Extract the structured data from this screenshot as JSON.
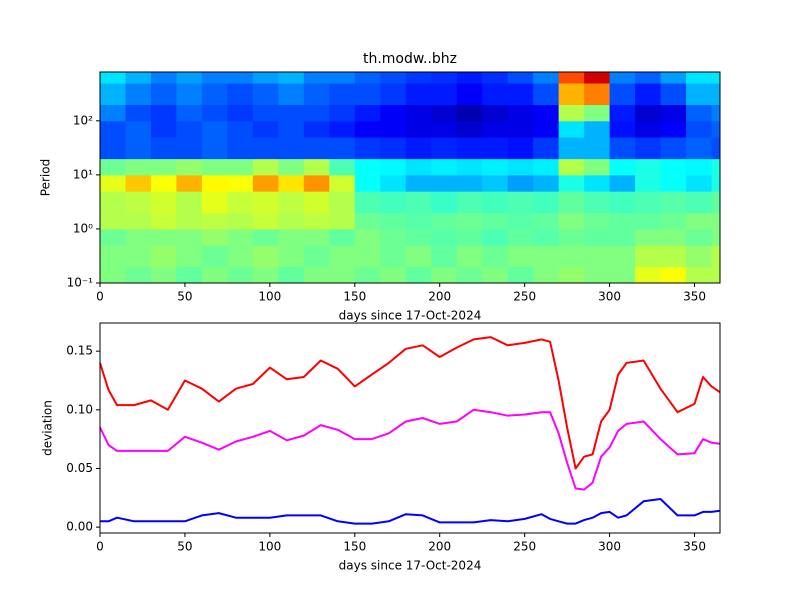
{
  "chart_data": [
    {
      "type": "heatmap",
      "title": "th.modw..bhz",
      "xlabel": "days since 17-Oct-2024",
      "ylabel": "Period",
      "xlim": [
        0,
        365
      ],
      "ylim": [
        0.1,
        800
      ],
      "log_y": true,
      "xticks": [
        0,
        50,
        100,
        150,
        200,
        250,
        300,
        350
      ],
      "yticks": [
        {
          "value": 0.1,
          "label": "10⁻¹"
        },
        {
          "value": 1,
          "label": "10⁰"
        },
        {
          "value": 10,
          "label": "10¹"
        },
        {
          "value": 100,
          "label": "10²"
        }
      ],
      "x_edges": [
        0,
        15,
        30,
        45,
        60,
        75,
        90,
        105,
        120,
        135,
        150,
        165,
        180,
        195,
        210,
        225,
        240,
        255,
        270,
        285,
        300,
        315,
        330,
        345,
        360,
        365
      ],
      "y_edges": [
        0.1,
        0.2,
        0.5,
        1,
        2,
        5,
        10,
        20,
        50,
        100,
        200,
        500,
        800
      ],
      "z": [
        [
          0.5,
          0.48,
          0.5,
          0.47,
          0.5,
          0.48,
          0.5,
          0.47,
          0.5,
          0.5,
          0.48,
          0.5,
          0.47,
          0.5,
          0.48,
          0.5,
          0.47,
          0.5,
          0.52,
          0.5,
          0.5,
          0.6,
          0.62,
          0.55,
          0.55
        ],
        [
          0.5,
          0.5,
          0.52,
          0.5,
          0.48,
          0.5,
          0.52,
          0.5,
          0.48,
          0.5,
          0.5,
          0.48,
          0.5,
          0.47,
          0.5,
          0.48,
          0.5,
          0.5,
          0.5,
          0.5,
          0.5,
          0.55,
          0.55,
          0.52,
          0.55
        ],
        [
          0.48,
          0.5,
          0.5,
          0.5,
          0.52,
          0.5,
          0.48,
          0.5,
          0.5,
          0.47,
          0.5,
          0.48,
          0.47,
          0.46,
          0.47,
          0.45,
          0.47,
          0.46,
          0.48,
          0.47,
          0.47,
          0.5,
          0.5,
          0.48,
          0.5
        ],
        [
          0.55,
          0.55,
          0.57,
          0.55,
          0.56,
          0.55,
          0.57,
          0.55,
          0.56,
          0.55,
          0.48,
          0.47,
          0.46,
          0.47,
          0.48,
          0.47,
          0.46,
          0.47,
          0.5,
          0.48,
          0.47,
          0.47,
          0.48,
          0.5,
          0.5
        ],
        [
          0.55,
          0.56,
          0.58,
          0.55,
          0.6,
          0.57,
          0.58,
          0.56,
          0.58,
          0.55,
          0.45,
          0.44,
          0.45,
          0.43,
          0.45,
          0.44,
          0.45,
          0.44,
          0.47,
          0.45,
          0.44,
          0.45,
          0.46,
          0.45,
          0.47
        ],
        [
          0.6,
          0.68,
          0.62,
          0.7,
          0.63,
          0.62,
          0.72,
          0.65,
          0.73,
          0.58,
          0.38,
          0.35,
          0.3,
          0.3,
          0.3,
          0.32,
          0.28,
          0.3,
          0.4,
          0.35,
          0.3,
          0.4,
          0.38,
          0.35,
          0.4
        ],
        [
          0.48,
          0.5,
          0.5,
          0.52,
          0.5,
          0.5,
          0.55,
          0.5,
          0.55,
          0.45,
          0.38,
          0.37,
          0.35,
          0.36,
          0.35,
          0.36,
          0.35,
          0.36,
          0.55,
          0.5,
          0.38,
          0.4,
          0.38,
          0.37,
          0.4
        ],
        [
          0.2,
          0.22,
          0.2,
          0.2,
          0.22,
          0.2,
          0.2,
          0.2,
          0.2,
          0.2,
          0.18,
          0.17,
          0.15,
          0.16,
          0.15,
          0.15,
          0.14,
          0.18,
          0.3,
          0.3,
          0.2,
          0.18,
          0.2,
          0.22,
          0.2
        ],
        [
          0.2,
          0.22,
          0.18,
          0.2,
          0.22,
          0.2,
          0.18,
          0.2,
          0.17,
          0.15,
          0.12,
          0.12,
          0.1,
          0.1,
          0.08,
          0.1,
          0.1,
          0.12,
          0.35,
          0.3,
          0.14,
          0.1,
          0.12,
          0.2,
          0.22
        ],
        [
          0.25,
          0.2,
          0.18,
          0.22,
          0.2,
          0.18,
          0.2,
          0.2,
          0.2,
          0.18,
          0.15,
          0.12,
          0.1,
          0.08,
          0.05,
          0.08,
          0.1,
          0.12,
          0.55,
          0.5,
          0.15,
          0.08,
          0.1,
          0.22,
          0.25
        ],
        [
          0.3,
          0.25,
          0.22,
          0.25,
          0.22,
          0.2,
          0.22,
          0.25,
          0.22,
          0.2,
          0.2,
          0.18,
          0.15,
          0.15,
          0.12,
          0.15,
          0.15,
          0.2,
          0.7,
          0.75,
          0.2,
          0.15,
          0.2,
          0.3,
          0.3
        ],
        [
          0.35,
          0.3,
          0.25,
          0.28,
          0.25,
          0.25,
          0.28,
          0.3,
          0.25,
          0.25,
          0.22,
          0.2,
          0.18,
          0.17,
          0.15,
          0.17,
          0.2,
          0.25,
          0.8,
          0.92,
          0.25,
          0.22,
          0.28,
          0.35,
          0.35
        ]
      ]
    },
    {
      "type": "line",
      "xlabel": "days since 17-Oct-2024",
      "ylabel": "deviation",
      "xlim": [
        0,
        365
      ],
      "ylim": [
        -0.005,
        0.174
      ],
      "xticks": [
        0,
        50,
        100,
        150,
        200,
        250,
        300,
        350
      ],
      "yticks": [
        {
          "value": 0,
          "label": "0.00"
        },
        {
          "value": 0.05,
          "label": "0.05"
        },
        {
          "value": 0.1,
          "label": "0.10"
        },
        {
          "value": 0.15,
          "label": "0.15"
        }
      ],
      "x": [
        0,
        5,
        10,
        20,
        30,
        40,
        50,
        60,
        70,
        80,
        90,
        100,
        110,
        120,
        130,
        140,
        150,
        160,
        170,
        180,
        190,
        200,
        210,
        220,
        230,
        240,
        250,
        260,
        265,
        270,
        275,
        280,
        285,
        290,
        295,
        300,
        305,
        310,
        320,
        330,
        340,
        350,
        355,
        360,
        365
      ],
      "series": [
        {
          "color": "#ff0000",
          "values": [
            0.14,
            0.117,
            0.104,
            0.104,
            0.108,
            0.1,
            0.125,
            0.118,
            0.107,
            0.118,
            0.122,
            0.136,
            0.126,
            0.128,
            0.142,
            0.135,
            0.12,
            0.13,
            0.14,
            0.152,
            0.155,
            0.145,
            0.153,
            0.16,
            0.162,
            0.155,
            0.157,
            0.16,
            0.158,
            0.125,
            0.085,
            0.05,
            0.06,
            0.062,
            0.09,
            0.1,
            0.13,
            0.14,
            0.142,
            0.118,
            0.098,
            0.105,
            0.128,
            0.12,
            0.115
          ]
        },
        {
          "color": "#ff00ff",
          "values": [
            0.085,
            0.07,
            0.065,
            0.065,
            0.065,
            0.065,
            0.077,
            0.072,
            0.066,
            0.073,
            0.077,
            0.082,
            0.074,
            0.078,
            0.087,
            0.083,
            0.075,
            0.075,
            0.08,
            0.09,
            0.093,
            0.088,
            0.09,
            0.1,
            0.098,
            0.095,
            0.096,
            0.098,
            0.098,
            0.08,
            0.055,
            0.033,
            0.032,
            0.038,
            0.06,
            0.068,
            0.082,
            0.088,
            0.09,
            0.075,
            0.062,
            0.063,
            0.075,
            0.072,
            0.071
          ]
        },
        {
          "color": "#0000ff",
          "values": [
            0.005,
            0.005,
            0.008,
            0.005,
            0.005,
            0.005,
            0.005,
            0.01,
            0.012,
            0.008,
            0.008,
            0.008,
            0.01,
            0.01,
            0.01,
            0.005,
            0.003,
            0.003,
            0.005,
            0.011,
            0.01,
            0.004,
            0.004,
            0.004,
            0.006,
            0.005,
            0.007,
            0.011,
            0.007,
            0.005,
            0.003,
            0.003,
            0.006,
            0.008,
            0.012,
            0.013,
            0.008,
            0.01,
            0.022,
            0.024,
            0.01,
            0.01,
            0.013,
            0.013,
            0.014
          ]
        }
      ]
    }
  ]
}
